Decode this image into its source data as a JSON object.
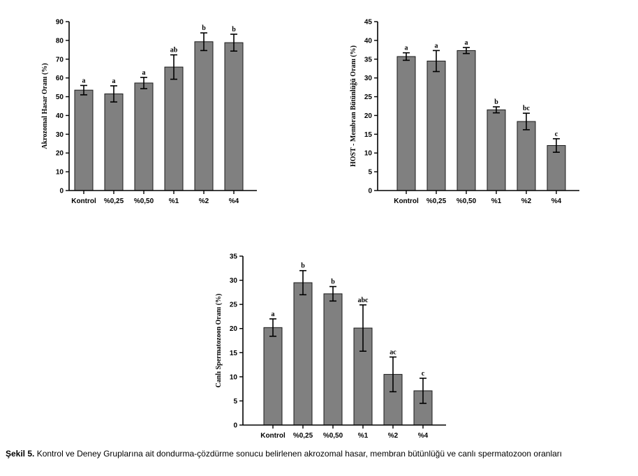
{
  "caption": {
    "label": "Şekil 5.",
    "text": " Kontrol ve Deney Gruplarına ait dondurma-çözdürme sonucu belirlenen akrozomal hasar, membran bütünlüğü ve canlı spermatozoon oranları"
  },
  "chart_data": [
    {
      "type": "bar",
      "ylabel": "Akrozomal Hasar Oranı (%)",
      "categories": [
        "Kontrol",
        "%0,25",
        "%0,50",
        "%1",
        "%2",
        "%4"
      ],
      "values": [
        53.5,
        51.5,
        57.3,
        65.8,
        79.3,
        78.8
      ],
      "errors": [
        2.5,
        4.3,
        3.0,
        6.5,
        4.7,
        4.5
      ],
      "significance": [
        "a",
        "a",
        "a",
        "ab",
        "b",
        "b"
      ],
      "ylim": [
        0,
        90
      ],
      "yticks": [
        0,
        10,
        20,
        30,
        40,
        50,
        60,
        70,
        80,
        90
      ],
      "grid": false
    },
    {
      "type": "bar",
      "ylabel": "HOST - Membran Bütünlüğü Oranı (%)",
      "categories": [
        "Kontrol",
        "%0,25",
        "%0,50",
        "%1",
        "%2",
        "%4"
      ],
      "values": [
        35.7,
        34.5,
        37.3,
        21.5,
        18.4,
        12.0
      ],
      "errors": [
        1.0,
        2.8,
        0.8,
        0.8,
        2.2,
        1.8
      ],
      "significance": [
        "a",
        "a",
        "a",
        "b",
        "bc",
        "c"
      ],
      "ylim": [
        0,
        45
      ],
      "yticks": [
        0,
        5,
        10,
        15,
        20,
        25,
        30,
        35,
        40,
        45
      ],
      "grid": false
    },
    {
      "type": "bar",
      "ylabel": "Canlı Spermatozoon Oranı (%)",
      "categories": [
        "Kontrol",
        "%0,25",
        "%0,50",
        "%1",
        "%2",
        "%4"
      ],
      "values": [
        20.2,
        29.5,
        27.2,
        20.1,
        10.5,
        7.1
      ],
      "errors": [
        1.8,
        2.5,
        1.5,
        4.8,
        3.6,
        2.6
      ],
      "significance": [
        "a",
        "b",
        "b",
        "abc",
        "ac",
        "c"
      ],
      "ylim": [
        0,
        35
      ],
      "yticks": [
        0,
        5,
        10,
        15,
        20,
        25,
        30,
        35
      ],
      "grid": false
    }
  ]
}
